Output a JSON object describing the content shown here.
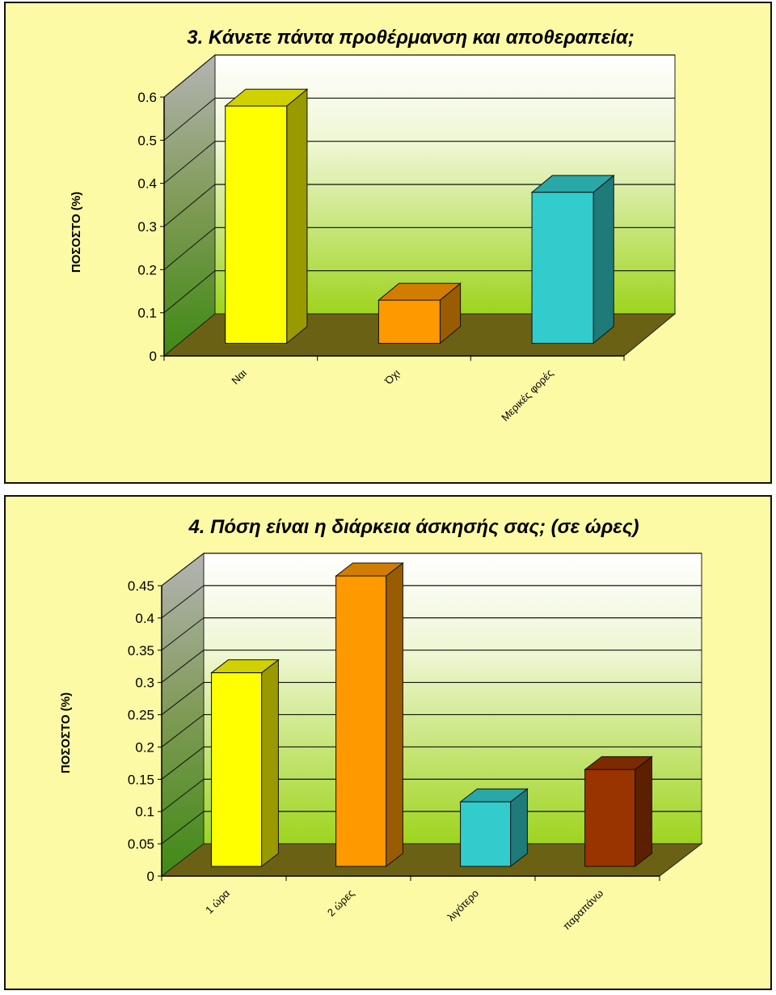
{
  "chart_data": [
    {
      "type": "bar",
      "title": "3. Κάνετε πάντα προθέρμανση και αποθεραπεία;",
      "ylabel": "ΠΟΣΟΣΤΟ (%)",
      "xlabel": "",
      "categories": [
        "Ναι",
        "Όχι",
        "Μερικές φορές"
      ],
      "values": [
        0.55,
        0.1,
        0.35
      ],
      "colors": [
        "#ffff00",
        "#ff9900",
        "#33cccc"
      ],
      "ylim": [
        0,
        0.6
      ],
      "yticks": [
        0,
        0.1,
        0.2,
        0.3,
        0.4,
        0.5,
        0.6
      ],
      "ytick_labels": [
        "0",
        "0.1",
        "0.2",
        "0.3",
        "0.4",
        "0.5",
        "0.6"
      ],
      "grid": true,
      "style": "3d",
      "legend": "none"
    },
    {
      "type": "bar",
      "title": "4. Πόση είναι η διάρκεια άσκησής σας; (σε ώρες)",
      "ylabel": "ΠΟΣΟΣΤΟ (%)",
      "xlabel": "",
      "categories": [
        "1 ώρα",
        "2 ώρες",
        "λιγότερο",
        "παραπάνω"
      ],
      "values": [
        0.3,
        0.45,
        0.1,
        0.15
      ],
      "colors": [
        "#ffff00",
        "#ff9900",
        "#33cccc",
        "#993300"
      ],
      "ylim": [
        0,
        0.45
      ],
      "yticks": [
        0,
        0.05,
        0.1,
        0.15,
        0.2,
        0.25,
        0.3,
        0.35,
        0.4,
        0.45
      ],
      "ytick_labels": [
        "0",
        "0.05",
        "0.1",
        "0.15",
        "0.2",
        "0.25",
        "0.3",
        "0.35",
        "0.4",
        "0.45"
      ],
      "grid": true,
      "style": "3d",
      "legend": "none"
    }
  ]
}
